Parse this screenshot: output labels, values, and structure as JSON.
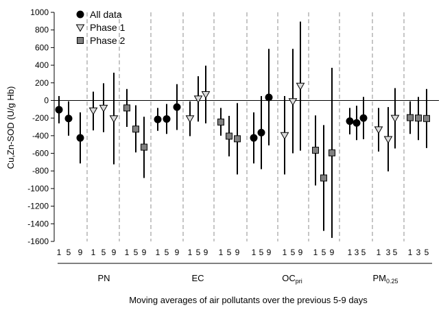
{
  "chart_data": {
    "type": "scatter",
    "subtype": "point estimate with confidence intervals",
    "ylabel": "Cu,Zn-SOD (U/g Hb)",
    "xlabel": "Moving averages of air pollutants over the previous 5-9 days",
    "ylim": [
      -1600,
      1000
    ],
    "yticks": [
      1000,
      800,
      600,
      400,
      200,
      0,
      -200,
      -400,
      -600,
      -800,
      -1000,
      -1200,
      -1400,
      -1600
    ],
    "reference_line": 0,
    "grid": false,
    "legend_position": "top-left",
    "legend": [
      {
        "name": "All data",
        "marker": "circle",
        "color": "#000000"
      },
      {
        "name": "Phase 1",
        "marker": "triangle-down",
        "color": "#d9d9d9"
      },
      {
        "name": "Phase 2",
        "marker": "square",
        "color": "#808080"
      }
    ],
    "groups": [
      {
        "label": "PN",
        "sub": "",
        "series": [
          {
            "phase": "All data",
            "lags": [
              "1",
              "5",
              "9"
            ],
            "y": [
              -105,
              -205,
              -425
            ],
            "lo": [
              -260,
              -400,
              -715
            ],
            "hi": [
              50,
              -10,
              -135
            ]
          },
          {
            "phase": "Phase 1",
            "lags": [
              "1",
              "5",
              "9"
            ],
            "y": [
              -115,
              -85,
              -205
            ],
            "lo": [
              -340,
              -360,
              -725
            ],
            "hi": [
              100,
              195,
              315
            ]
          },
          {
            "phase": "Phase 2",
            "lags": [
              "1",
              "5",
              "9"
            ],
            "y": [
              -85,
              -325,
              -530
            ],
            "lo": [
              -300,
              -590,
              -880
            ],
            "hi": [
              130,
              -55,
              -185
            ]
          }
        ]
      },
      {
        "label": "EC",
        "sub": "",
        "series": [
          {
            "phase": "All data",
            "lags": [
              "1",
              "5",
              "9"
            ],
            "y": [
              -215,
              -210,
              -75
            ],
            "lo": [
              -345,
              -380,
              -335
            ],
            "hi": [
              -85,
              -40,
              185
            ]
          },
          {
            "phase": "Phase 1",
            "lags": [
              "1",
              "5",
              "9"
            ],
            "y": [
              -205,
              20,
              70
            ],
            "lo": [
              -405,
              -240,
              -260
            ],
            "hi": [
              -10,
              275,
              395
            ]
          },
          {
            "phase": "Phase 2",
            "lags": [
              "1",
              "5",
              "9"
            ],
            "y": [
              -245,
              -405,
              -435
            ],
            "lo": [
              -400,
              -635,
              -840
            ],
            "hi": [
              -85,
              -175,
              -30
            ]
          }
        ]
      },
      {
        "label": "OC",
        "sub": "pri",
        "series": [
          {
            "phase": "All data",
            "lags": [
              "1",
              "5",
              "9"
            ],
            "y": [
              -425,
              -365,
              35
            ],
            "lo": [
              -715,
              -780,
              -510
            ],
            "hi": [
              -135,
              50,
              585
            ]
          },
          {
            "phase": "Phase 1",
            "lags": [
              "1",
              "5",
              "9"
            ],
            "y": [
              -395,
              -10,
              165
            ],
            "lo": [
              -840,
              -600,
              -570
            ],
            "hi": [
              50,
              585,
              895
            ]
          },
          {
            "phase": "Phase 2",
            "lags": [
              "1",
              "5",
              "9"
            ],
            "y": [
              -565,
              -880,
              -595
            ],
            "lo": [
              -965,
              -1480,
              -1560
            ],
            "hi": [
              -170,
              -280,
              370
            ]
          }
        ]
      },
      {
        "label": "PM",
        "sub": "0.25",
        "series": [
          {
            "phase": "All data",
            "lags": [
              "1",
              "3",
              "5"
            ],
            "y": [
              -235,
              -255,
              -200
            ],
            "lo": [
              -385,
              -450,
              -440
            ],
            "hi": [
              -85,
              -60,
              40
            ]
          },
          {
            "phase": "Phase 1",
            "lags": [
              "1",
              "3",
              "5"
            ],
            "y": [
              -330,
              -440,
              -200
            ],
            "lo": [
              -580,
              -805,
              -545
            ],
            "hi": [
              -85,
              -75,
              140
            ]
          },
          {
            "phase": "Phase 2",
            "lags": [
              "1",
              "3",
              "5"
            ],
            "y": [
              -195,
              -200,
              -205
            ],
            "lo": [
              -380,
              -450,
              -540
            ],
            "hi": [
              -10,
              40,
              130
            ]
          }
        ]
      }
    ]
  }
}
